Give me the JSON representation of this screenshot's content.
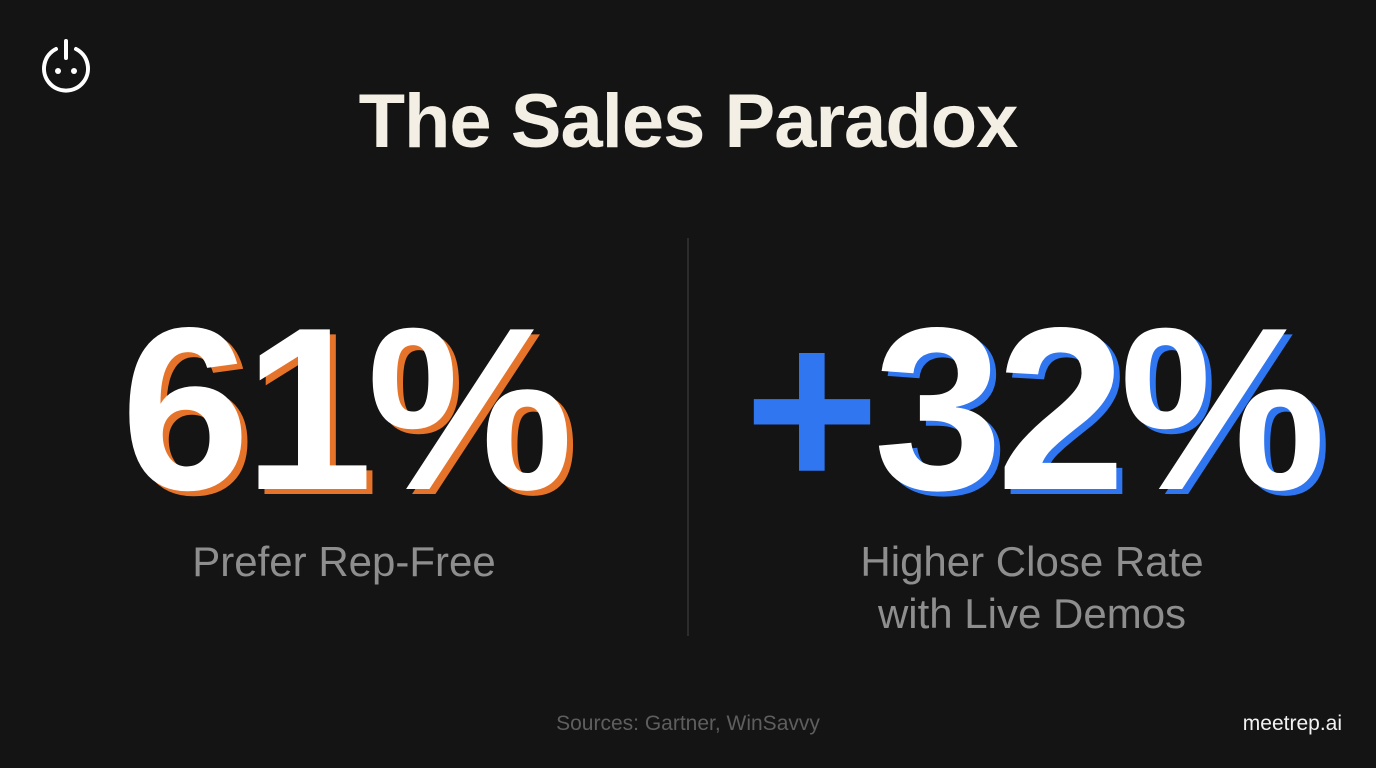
{
  "header": {
    "title": "The Sales Paradox"
  },
  "stats": [
    {
      "prefix": null,
      "value": "61%",
      "label_lines": [
        "Prefer Rep-Free"
      ]
    },
    {
      "prefix": "+",
      "value": "32%",
      "label_lines": [
        "Higher Close Rate",
        "with Live Demos"
      ]
    }
  ],
  "footer": {
    "sources": "Sources: Gartner, WinSavvy",
    "brand": "meetrep.ai"
  }
}
